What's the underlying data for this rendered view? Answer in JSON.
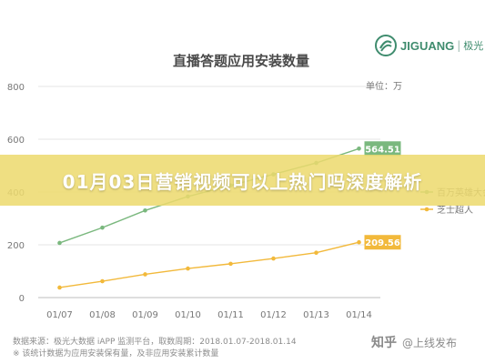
{
  "chart_data": {
    "type": "line",
    "title": "直播答题应用安装数量",
    "unit_label": "单位：万",
    "categories": [
      "01/07",
      "01/08",
      "01/09",
      "01/10",
      "01/11",
      "01/12",
      "01/13",
      "01/14"
    ],
    "yticks": [
      "0",
      "200",
      "400",
      "600",
      "800"
    ],
    "ylim": [
      0,
      800
    ],
    "grid": true,
    "series": [
      {
        "name": "百万英雄大会",
        "color": "#7ab87e",
        "values": [
          207,
          265,
          330,
          383,
          425,
          467,
          510,
          564.51
        ],
        "end_label": "564.51",
        "end_label_bg": "#7ab87e"
      },
      {
        "name": "芝士超人",
        "color": "#f2b93b",
        "values": [
          38,
          62,
          88,
          110,
          128,
          148,
          170,
          209.56
        ],
        "end_label": "209.56",
        "end_label_bg": "#f2b93b"
      }
    ],
    "source_lines": [
      "数据来源：极光大数据 iAPP 监测平台，取数周期：2018.01.07-2018.01.14",
      "※ 该统计数据为应用安装保有量，及非应用安装累计数量"
    ]
  },
  "banner": {
    "text": "01月03日营销视频可以上热门吗深度解析"
  },
  "brand": {
    "name": "JIGUANG",
    "separator": "|",
    "cn": "极光"
  },
  "watermark": {
    "logo": "知乎",
    "text": "@上线发布"
  },
  "colors": {
    "axis_text": "#777777",
    "grid": "#e6e6e6",
    "title": "#4a4a4a"
  }
}
